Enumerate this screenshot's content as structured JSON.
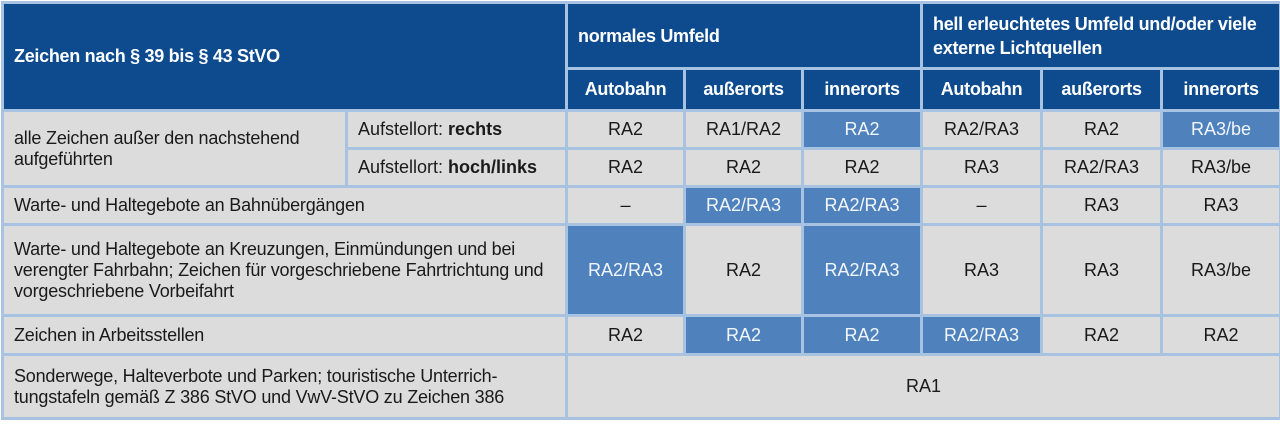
{
  "header": {
    "title": "Zeichen nach § 39 bis § 43 StVO",
    "group1": "normales Umfeld",
    "group2": "hell erleuchtetes Umfeld und/oder viele externe Lichtquellen",
    "columns": [
      "Autobahn",
      "außerorts",
      "innerorts",
      "Autobahn",
      "außerorts",
      "innerorts"
    ]
  },
  "colors": {
    "header_bg": "#0d4b8e",
    "grid": "#a8c3e2",
    "cell_bg": "#dcdcdc",
    "highlight_bg": "#4f81bd"
  },
  "rows": [
    {
      "label": "alle Zeichen außer den nachstehend aufgeführten",
      "sub": [
        {
          "prefix": "Aufstellort: ",
          "bold": "rechts",
          "values": [
            "RA2",
            "RA1/RA2",
            "RA2",
            "RA2/RA3",
            "RA2",
            "RA3/be"
          ],
          "highlight": [
            false,
            false,
            true,
            false,
            false,
            true
          ]
        },
        {
          "prefix": "Aufstellort: ",
          "bold": "hoch/links",
          "values": [
            "RA2",
            "RA2",
            "RA2",
            "RA3",
            "RA2/RA3",
            "RA3/be"
          ],
          "highlight": [
            false,
            false,
            false,
            false,
            false,
            false
          ]
        }
      ]
    },
    {
      "label": "Warte- und Haltegebote an Bahnübergängen",
      "values": [
        "–",
        "RA2/RA3",
        "RA2/RA3",
        "–",
        "RA3",
        "RA3"
      ],
      "highlight": [
        false,
        true,
        true,
        false,
        false,
        false
      ]
    },
    {
      "label": "Warte- und Haltegebote an Kreuzungen, Einmündungen und bei verengter Fahrbahn; Zeichen für vorgeschriebene Fahrtrichtung und vorgeschriebene Vorbeifahrt",
      "values": [
        "RA2/RA3",
        "RA2",
        "RA2/RA3",
        "RA3",
        "RA3",
        "RA3/be"
      ],
      "highlight": [
        true,
        false,
        true,
        false,
        false,
        false
      ]
    },
    {
      "label": "Zeichen in Arbeitsstellen",
      "values": [
        "RA2",
        "RA2",
        "RA2",
        "RA2/RA3",
        "RA2",
        "RA2"
      ],
      "highlight": [
        false,
        true,
        true,
        true,
        false,
        false
      ]
    },
    {
      "label": "Sonderwege, Halteverbote und Parken; touristische Unterrich-tungstafeln gemäß Z 386 StVO und VwV-StVO zu Zeichen 386",
      "merged_value": "RA1"
    }
  ]
}
